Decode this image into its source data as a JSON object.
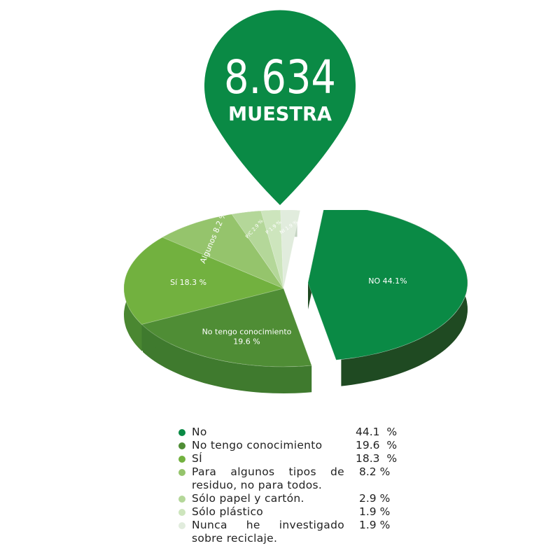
{
  "header": {
    "sample_number": "8.634",
    "sample_label": "MUESTRA",
    "pin_color": "#0a8a45"
  },
  "chart_data": {
    "type": "pie",
    "style": "3d-exploded",
    "explode": "No",
    "slices": [
      {
        "name": "No",
        "value": 44.1,
        "color": "#0a8a45",
        "side_color": "#1f4a22",
        "slice_label": "NO 44.1%"
      },
      {
        "name": "No tengo conocimiento",
        "value": 19.6,
        "color": "#4f8d35",
        "side_color": "#3f7a2e",
        "slice_label": "No tengo conocimiento",
        "slice_label_2": "19.6  %"
      },
      {
        "name": "SÍ",
        "value": 18.3,
        "color": "#72b13f",
        "side_color": "#4a8731",
        "slice_label": "Sí  18.3  %"
      },
      {
        "name": "Para algunos tipos de residuo, no para todos.",
        "value": 8.2,
        "color": "#95c46c",
        "side_color": "#78a95a",
        "slice_label": "Algunos  8.2  %"
      },
      {
        "name": "Sólo papel y cartón.",
        "value": 2.9,
        "color": "#b4d799",
        "side_color": "#97bd82",
        "slice_label": "P/C  2.9  %"
      },
      {
        "name": "Sólo plástico",
        "value": 1.9,
        "color": "#cde5bd",
        "side_color": "#aecaa2",
        "slice_label": "P  1.9  %"
      },
      {
        "name": "Nunca he investigado sobre reciclaje.",
        "value": 1.9,
        "color": "#e1ecdd",
        "side_color": "#c3d2c0",
        "slice_label": "NI  1.9  %"
      }
    ]
  },
  "legend": [
    {
      "label": "No",
      "value": "44.1  %",
      "color": "#0a8a45"
    },
    {
      "label": "No tengo conocimiento",
      "value": "19.6  %",
      "color": "#4f8d35"
    },
    {
      "label": "SÍ",
      "value": "18.3  %",
      "color": "#72b13f"
    },
    {
      "label": "Para algunos tipos de residuo, no para todos.",
      "value": "8.2 %",
      "color": "#95c46c"
    },
    {
      "label": "Sólo papel y cartón.",
      "value": "2.9 %",
      "color": "#b4d799"
    },
    {
      "label": "Sólo plástico",
      "value": "1.9 %",
      "color": "#cde5bd"
    },
    {
      "label": "Nunca he investigado sobre reciclaje.",
      "value": "1.9 %",
      "color": "#e1ecdd"
    }
  ]
}
